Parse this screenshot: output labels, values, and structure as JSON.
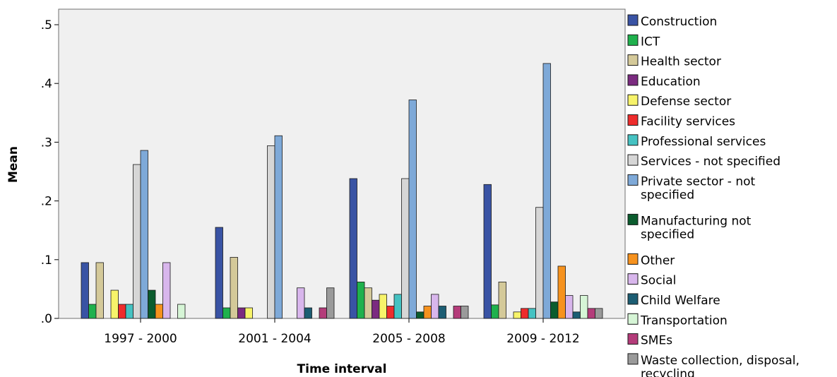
{
  "chart_data": {
    "type": "bar",
    "xlabel": "Time interval",
    "ylabel": "Mean",
    "ylim": [
      0,
      0.5
    ],
    "yticks": [
      {
        "value": 0.0,
        "label": ".0"
      },
      {
        "value": 0.1,
        "label": ".1"
      },
      {
        "value": 0.2,
        "label": ".2"
      },
      {
        "value": 0.3,
        "label": ".3"
      },
      {
        "value": 0.4,
        "label": ".4"
      },
      {
        "value": 0.5,
        "label": ".5"
      }
    ],
    "grid": false,
    "legend_position": "right",
    "categories": [
      "1997 - 2000",
      "2001 - 2004",
      "2005 - 2008",
      "2009 - 2012"
    ],
    "series": [
      {
        "name": "Construction",
        "legend_lines": [
          "Construction"
        ],
        "color": "#3953a4",
        "values": [
          0.095,
          0.155,
          0.238,
          0.228
        ]
      },
      {
        "name": "ICT",
        "legend_lines": [
          "ICT"
        ],
        "color": "#1fb14d",
        "values": [
          0.024,
          0.018,
          0.062,
          0.023
        ]
      },
      {
        "name": "Health sector",
        "legend_lines": [
          "Health sector"
        ],
        "color": "#d4c999",
        "values": [
          0.095,
          0.104,
          0.052,
          0.062
        ]
      },
      {
        "name": "Education",
        "legend_lines": [
          "Education"
        ],
        "color": "#7b2b80",
        "values": [
          0.0,
          0.018,
          0.031,
          0.0
        ]
      },
      {
        "name": "Defense sector",
        "legend_lines": [
          "Defense sector"
        ],
        "color": "#f7f36a",
        "values": [
          0.048,
          0.018,
          0.041,
          0.011
        ]
      },
      {
        "name": "Facility services",
        "legend_lines": [
          "Facility services"
        ],
        "color": "#ee2d2d",
        "values": [
          0.024,
          0.0,
          0.021,
          0.017
        ]
      },
      {
        "name": "Professional services",
        "legend_lines": [
          "Professional services"
        ],
        "color": "#45c2c2",
        "values": [
          0.024,
          0.0,
          0.041,
          0.017
        ]
      },
      {
        "name": "Services - not specified",
        "legend_lines": [
          "Services - not specified"
        ],
        "color": "#d6d6d6",
        "values": [
          0.262,
          0.294,
          0.238,
          0.189
        ]
      },
      {
        "name": "Private sector - not specified",
        "legend_lines": [
          "Private sector - not",
          "specified"
        ],
        "color": "#7ea9d8",
        "values": [
          0.286,
          0.311,
          0.372,
          0.434
        ]
      },
      {
        "name": "Manufacturing not specified",
        "legend_lines": [
          "Manufacturing not",
          "specified"
        ],
        "color": "#0b5c2e",
        "values": [
          0.048,
          0.0,
          0.011,
          0.028
        ]
      },
      {
        "name": "Other",
        "legend_lines": [
          "Other"
        ],
        "color": "#f6921e",
        "values": [
          0.024,
          0.0,
          0.021,
          0.089
        ]
      },
      {
        "name": "Social",
        "legend_lines": [
          "Social"
        ],
        "color": "#d8b6ec",
        "values": [
          0.095,
          0.052,
          0.041,
          0.039
        ]
      },
      {
        "name": "Child Welfare",
        "legend_lines": [
          "Child Welfare"
        ],
        "color": "#1c5d73",
        "values": [
          0.0,
          0.018,
          0.021,
          0.011
        ]
      },
      {
        "name": "Transportation",
        "legend_lines": [
          "Transportation"
        ],
        "color": "#d6f5d6",
        "values": [
          0.024,
          0.0,
          0.0,
          0.039
        ]
      },
      {
        "name": "SMEs",
        "legend_lines": [
          "SMEs"
        ],
        "color": "#b43c7a",
        "values": [
          0.0,
          0.018,
          0.021,
          0.017
        ]
      },
      {
        "name": "Waste collection, disposal, recycling",
        "legend_lines": [
          "Waste collection, disposal,",
          "recycling"
        ],
        "color": "#9a9a9a",
        "values": [
          0.0,
          0.052,
          0.021,
          0.017
        ]
      }
    ]
  }
}
